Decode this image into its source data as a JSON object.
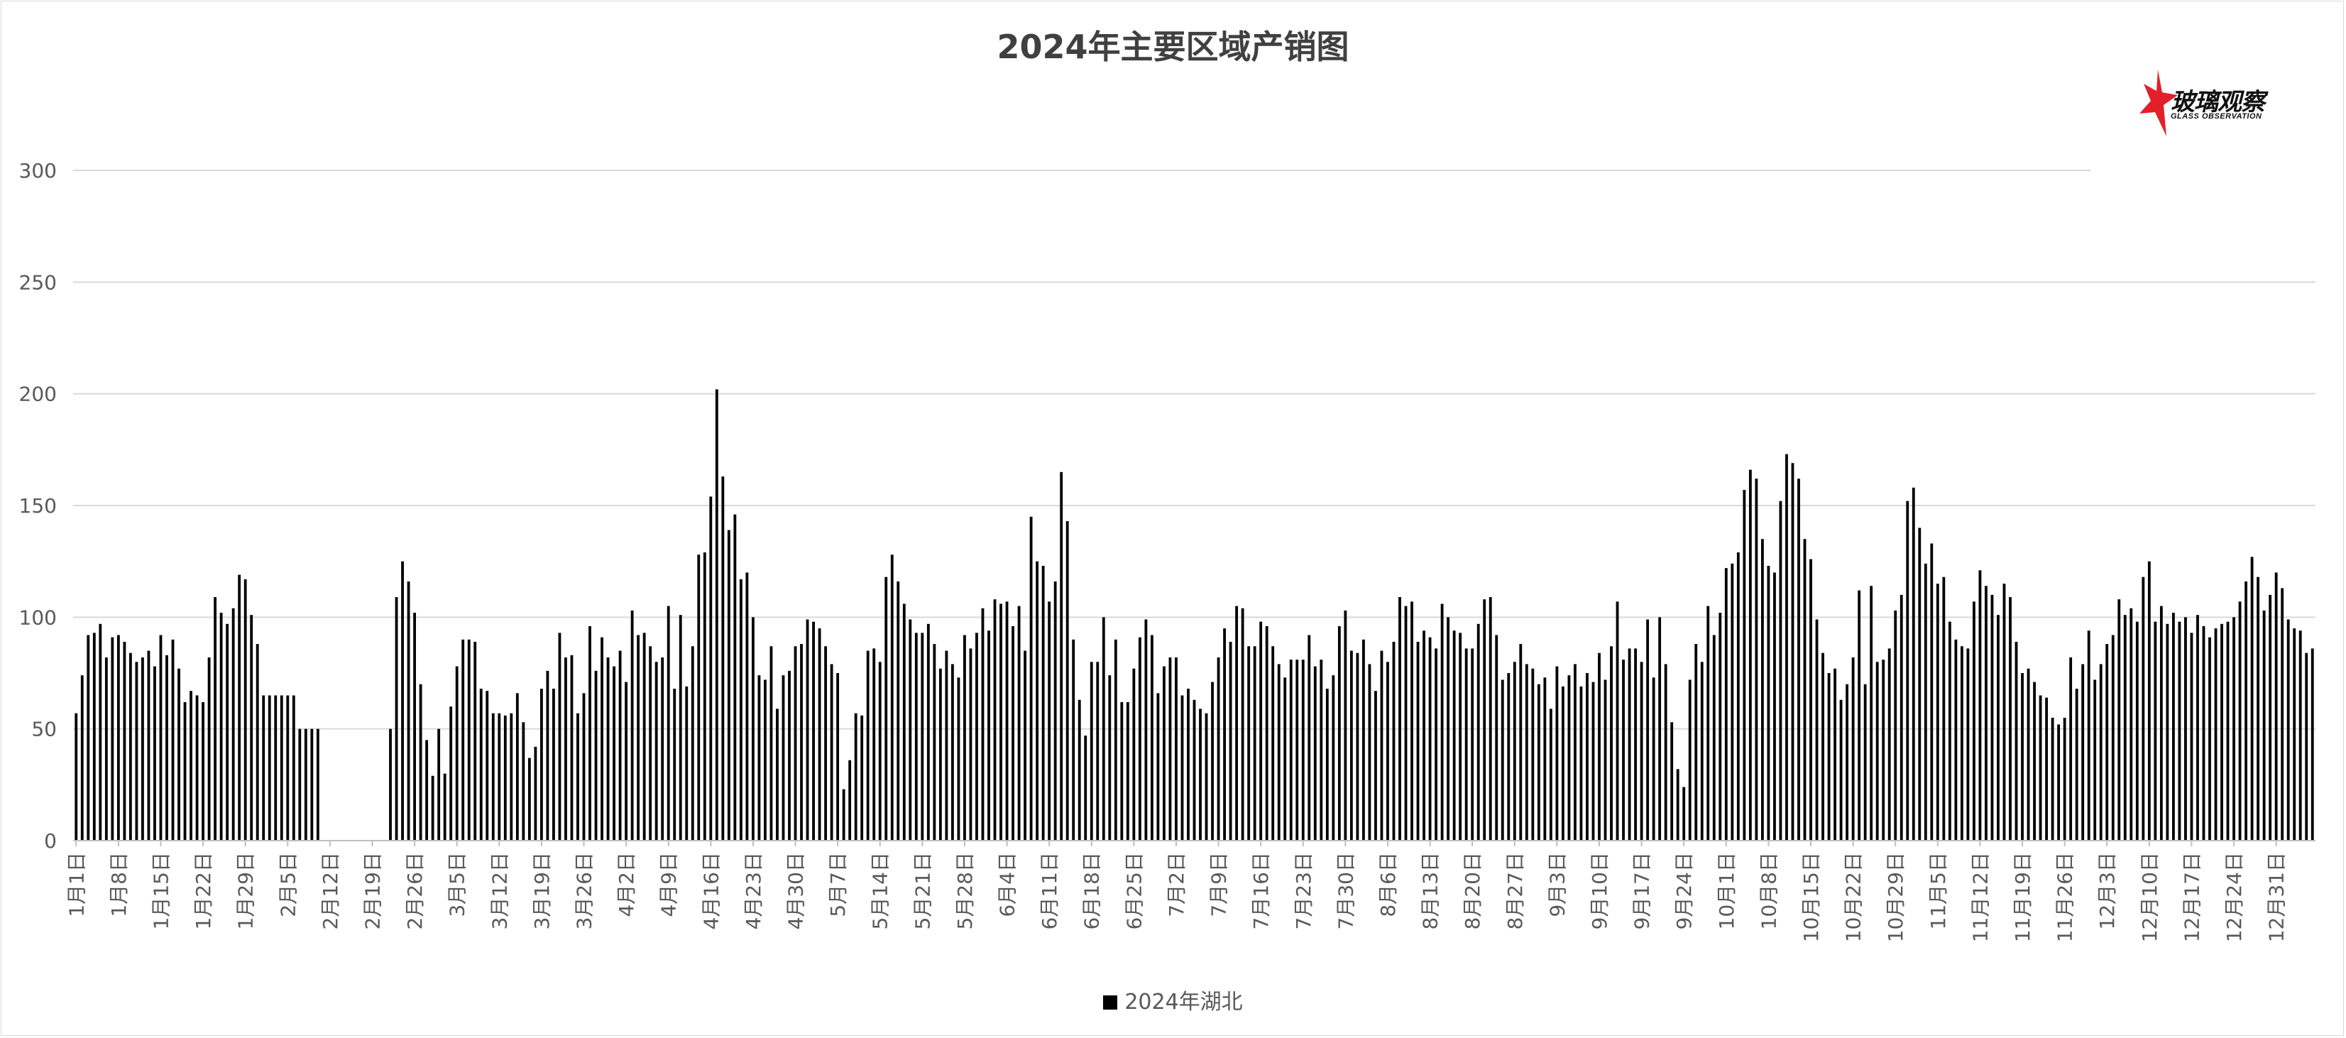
{
  "title": "2024年主要区域产销图",
  "logo": {
    "text": "玻璃观察",
    "subtext": "GLASS OBSERVATION",
    "accent_color": "#e3202a"
  },
  "legend": {
    "label": "2024年湖北",
    "color": "#000000"
  },
  "colors": {
    "bar": "#000000",
    "grid": "#d9d9d9",
    "axis_text": "#595959",
    "title": "#404040"
  },
  "chart_data": {
    "type": "bar",
    "title": "2024年主要区域产销图",
    "xlabel": "",
    "ylabel": "",
    "ylim": [
      0,
      300
    ],
    "yticks": [
      0,
      50,
      100,
      150,
      200,
      250,
      300
    ],
    "grid": true,
    "legend_position": "bottom",
    "x_tick_labels": [
      "1月1日",
      "1月8日",
      "1月15日",
      "1月22日",
      "1月29日",
      "2月5日",
      "2月12日",
      "2月19日",
      "2月26日",
      "3月5日",
      "3月12日",
      "3月19日",
      "3月26日",
      "4月2日",
      "4月9日",
      "4月16日",
      "4月23日",
      "4月30日",
      "5月7日",
      "5月14日",
      "5月21日",
      "5月28日",
      "6月4日",
      "6月11日",
      "6月18日",
      "6月25日",
      "7月2日",
      "7月9日",
      "7月16日",
      "7月23日",
      "7月30日",
      "8月6日",
      "8月13日",
      "8月20日",
      "8月27日",
      "9月3日",
      "9月10日",
      "9月17日",
      "9月24日",
      "10月1日",
      "10月8日",
      "10月15日",
      "10月22日",
      "10月29日",
      "11月5日",
      "11月12日",
      "11月19日",
      "11月26日",
      "12月3日",
      "12月10日",
      "12月17日",
      "12月24日",
      "12月31日"
    ],
    "series": [
      {
        "name": "2024年湖北",
        "start_date": "1月1日",
        "values": [
          57,
          74,
          92,
          93,
          97,
          82,
          91,
          92,
          89,
          84,
          80,
          82,
          85,
          78,
          92,
          83,
          90,
          77,
          62,
          67,
          65,
          62,
          82,
          109,
          102,
          97,
          104,
          119,
          117,
          101,
          88,
          65,
          65,
          65,
          65,
          65,
          65,
          50,
          50,
          50,
          50,
          null,
          null,
          null,
          null,
          null,
          null,
          null,
          null,
          null,
          null,
          null,
          50,
          109,
          125,
          116,
          102,
          70,
          45,
          29,
          50,
          30,
          60,
          78,
          90,
          90,
          89,
          68,
          67,
          57,
          57,
          56,
          57,
          66,
          53,
          37,
          42,
          68,
          76,
          68,
          93,
          82,
          83,
          57,
          66,
          96,
          76,
          91,
          82,
          78,
          85,
          71,
          103,
          92,
          93,
          87,
          80,
          82,
          105,
          68,
          101,
          69,
          87,
          128,
          129,
          154,
          202,
          163,
          139,
          146,
          117,
          120,
          100,
          74,
          72,
          87,
          59,
          74,
          76,
          87,
          88,
          99,
          98,
          95,
          87,
          79,
          75,
          23,
          36,
          57,
          56,
          85,
          86,
          80,
          118,
          128,
          116,
          106,
          99,
          93,
          93,
          97,
          88,
          77,
          85,
          79,
          73,
          92,
          86,
          93,
          104,
          94,
          108,
          106,
          107,
          96,
          105,
          85,
          145,
          125,
          123,
          107,
          116,
          165,
          143,
          90,
          63,
          47,
          80,
          80,
          100,
          74,
          90,
          62,
          62,
          77,
          91,
          99,
          92,
          66,
          78,
          82,
          82,
          65,
          68,
          63,
          59,
          57,
          71,
          82,
          95,
          89,
          105,
          104,
          87,
          87,
          98,
          96,
          87,
          79,
          73,
          81,
          81,
          81,
          92,
          78,
          81,
          68,
          74,
          96,
          103,
          85,
          84,
          90,
          79,
          67,
          85,
          80,
          89,
          109,
          105,
          107,
          89,
          94,
          91,
          86,
          106,
          100,
          94,
          93,
          86,
          86,
          97,
          108,
          109,
          92,
          72,
          75,
          80,
          88,
          79,
          77,
          70,
          73,
          59,
          78,
          69,
          74,
          79,
          69,
          75,
          71,
          84,
          72,
          87,
          107,
          81,
          86,
          86,
          80,
          99,
          73,
          100,
          79,
          53,
          32,
          24,
          72,
          88,
          80,
          105,
          92,
          102,
          122,
          124,
          129,
          157,
          166,
          162,
          135,
          123,
          120,
          152,
          173,
          169,
          162,
          135,
          126,
          99,
          84,
          75,
          77,
          63,
          70,
          82,
          112,
          70,
          114,
          80,
          81,
          86,
          103,
          110,
          152,
          158,
          140,
          124,
          133,
          115,
          118,
          98,
          90,
          87,
          86,
          107,
          121,
          114,
          110,
          101,
          115,
          109,
          89,
          75,
          77,
          71,
          65,
          64,
          55,
          52,
          55,
          82,
          68,
          79,
          94,
          72,
          79,
          88,
          92,
          108,
          101,
          104,
          98,
          118,
          125,
          98,
          105,
          97,
          102,
          98,
          100,
          93,
          101,
          96,
          91,
          95,
          97,
          98,
          100,
          107,
          116,
          127,
          118,
          103,
          110,
          120,
          113,
          99,
          95,
          94,
          84,
          86
        ]
      }
    ]
  }
}
